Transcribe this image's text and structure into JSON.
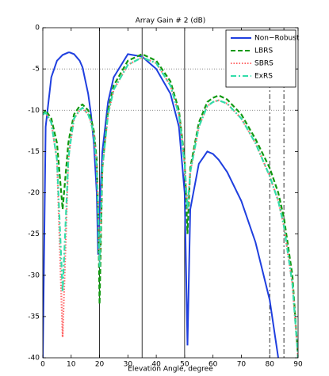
{
  "chart_data": {
    "type": "line",
    "title": "Array Gain # 2 (dB)",
    "xlabel": "Elevation Angle, degree",
    "x": [
      0,
      1,
      3,
      5,
      7,
      9,
      9.5,
      11,
      13,
      14,
      16,
      17,
      18,
      19,
      19.5,
      20,
      21,
      23,
      25,
      30,
      35,
      40,
      45,
      48,
      50,
      51,
      52,
      55,
      58,
      60,
      62,
      65,
      70,
      75,
      80,
      83,
      85,
      88,
      90
    ],
    "series": [
      {
        "name": "Non−Robust",
        "color": "#1f3fdf",
        "dash": "solid",
        "values": [
          -40,
          -12,
          -6,
          -4,
          -3.3,
          -3,
          -3,
          -3.2,
          -4,
          -4.8,
          -8,
          -10.5,
          -14,
          -20,
          -27.5,
          -22,
          -15,
          -9,
          -6,
          -3.2,
          -3.5,
          -5,
          -8,
          -12,
          -20,
          -38.5,
          -22,
          -16.5,
          -15,
          -15.3,
          -16,
          -17.5,
          -21,
          -26,
          -33,
          -40,
          null,
          null,
          null
        ]
      },
      {
        "name": "LBRS",
        "color": "#119911",
        "dash": "dashed",
        "values": [
          -10.5,
          -10,
          -11,
          -14,
          -22,
          -14,
          -13,
          -10.5,
          -9.5,
          -9.3,
          -10,
          -11,
          -12.5,
          -16,
          -22,
          -33.5,
          -17,
          -10,
          -7,
          -4,
          -3.2,
          -4,
          -6.5,
          -10,
          -16,
          -25,
          -17,
          -11.5,
          -9,
          -8.5,
          -8.2,
          -8.7,
          -10.5,
          -13.5,
          -17,
          -20,
          -23,
          -30,
          -40
        ]
      },
      {
        "name": "SBRS",
        "color": "#ff6666",
        "dash": "dotted",
        "values": [
          -10.5,
          -10.3,
          -11.5,
          -16,
          -37.5,
          -16,
          -14.5,
          -11,
          -10,
          -9.7,
          -10.5,
          -11.5,
          -13,
          -17,
          -22,
          -29,
          -17,
          -10.5,
          -7.5,
          -4.5,
          -3.6,
          -4.3,
          -7,
          -10.5,
          -16.5,
          -22,
          -17.5,
          -12,
          -9.5,
          -9,
          -8.8,
          -9.2,
          -11,
          -14,
          -18,
          -21,
          -24,
          -31,
          -40
        ]
      },
      {
        "name": "ExRS",
        "color": "#33ddaa",
        "dash": "dashdot",
        "values": [
          -10.5,
          -10.3,
          -11.5,
          -16,
          -32,
          -16,
          -14.5,
          -11,
          -10,
          -9.7,
          -10.5,
          -11.5,
          -13,
          -17,
          -22,
          -29,
          -17,
          -10.5,
          -7.5,
          -4.5,
          -3.6,
          -4.3,
          -7,
          -10.5,
          -16.5,
          -22,
          -17.5,
          -12,
          -9.5,
          -9,
          -8.8,
          -9.2,
          -11,
          -14,
          -18,
          -21,
          -24,
          -31,
          -40
        ]
      }
    ],
    "xlim": [
      0,
      90
    ],
    "xticks": [
      0,
      10,
      20,
      30,
      40,
      50,
      60,
      70,
      80,
      90
    ],
    "ylim": [
      -40,
      0
    ],
    "yticks": [
      -40,
      -35,
      -30,
      -25,
      -20,
      -15,
      -10,
      -5,
      0
    ],
    "vlines_solid": [
      20,
      35,
      50
    ],
    "vlines_dashdot": [
      80,
      85
    ],
    "hlines_dotted": [
      -5,
      -10
    ],
    "legend": "northeast"
  }
}
